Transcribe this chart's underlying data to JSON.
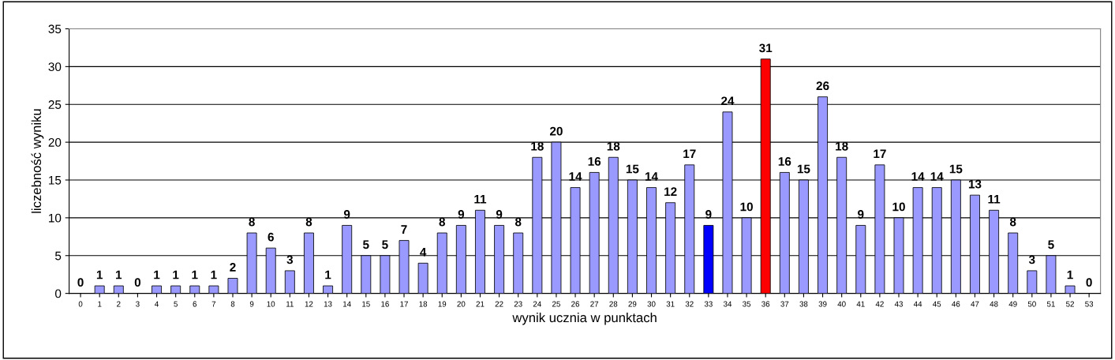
{
  "chart_data": {
    "type": "bar",
    "xlabel": "wynik ucznia w punktach",
    "ylabel": "liczebność wyniku",
    "categories": [
      "0",
      "1",
      "2",
      "3",
      "4",
      "5",
      "6",
      "7",
      "8",
      "9",
      "10",
      "11",
      "12",
      "13",
      "14",
      "15",
      "16",
      "17",
      "18",
      "19",
      "20",
      "21",
      "22",
      "23",
      "24",
      "25",
      "26",
      "27",
      "28",
      "29",
      "30",
      "31",
      "32",
      "33",
      "34",
      "35",
      "36",
      "37",
      "38",
      "39",
      "40",
      "41",
      "42",
      "43",
      "44",
      "45",
      "46",
      "47",
      "48",
      "49",
      "50",
      "51",
      "52",
      "53"
    ],
    "values": [
      0,
      1,
      1,
      0,
      1,
      1,
      1,
      1,
      2,
      8,
      6,
      3,
      8,
      1,
      9,
      5,
      5,
      7,
      4,
      8,
      9,
      11,
      9,
      8,
      18,
      20,
      14,
      16,
      18,
      15,
      14,
      12,
      17,
      9,
      24,
      10,
      31,
      16,
      15,
      26,
      18,
      9,
      17,
      10,
      14,
      14,
      15,
      13,
      11,
      8,
      3,
      5,
      1,
      0
    ],
    "colors": [
      "#9999ff",
      "#9999ff",
      "#9999ff",
      "#9999ff",
      "#9999ff",
      "#9999ff",
      "#9999ff",
      "#9999ff",
      "#9999ff",
      "#9999ff",
      "#9999ff",
      "#9999ff",
      "#9999ff",
      "#9999ff",
      "#9999ff",
      "#9999ff",
      "#9999ff",
      "#9999ff",
      "#9999ff",
      "#9999ff",
      "#9999ff",
      "#9999ff",
      "#9999ff",
      "#9999ff",
      "#9999ff",
      "#9999ff",
      "#9999ff",
      "#9999ff",
      "#9999ff",
      "#9999ff",
      "#9999ff",
      "#9999ff",
      "#9999ff",
      "#0000ff",
      "#9999ff",
      "#9999ff",
      "#ff0000",
      "#9999ff",
      "#9999ff",
      "#9999ff",
      "#9999ff",
      "#9999ff",
      "#9999ff",
      "#9999ff",
      "#9999ff",
      "#9999ff",
      "#9999ff",
      "#9999ff",
      "#9999ff",
      "#9999ff",
      "#9999ff",
      "#9999ff",
      "#9999ff",
      "#9999ff"
    ],
    "ylim": [
      0,
      35
    ],
    "yticks": [
      0,
      5,
      10,
      15,
      20,
      25,
      30,
      35
    ],
    "grid": "y",
    "data_labels": true
  }
}
